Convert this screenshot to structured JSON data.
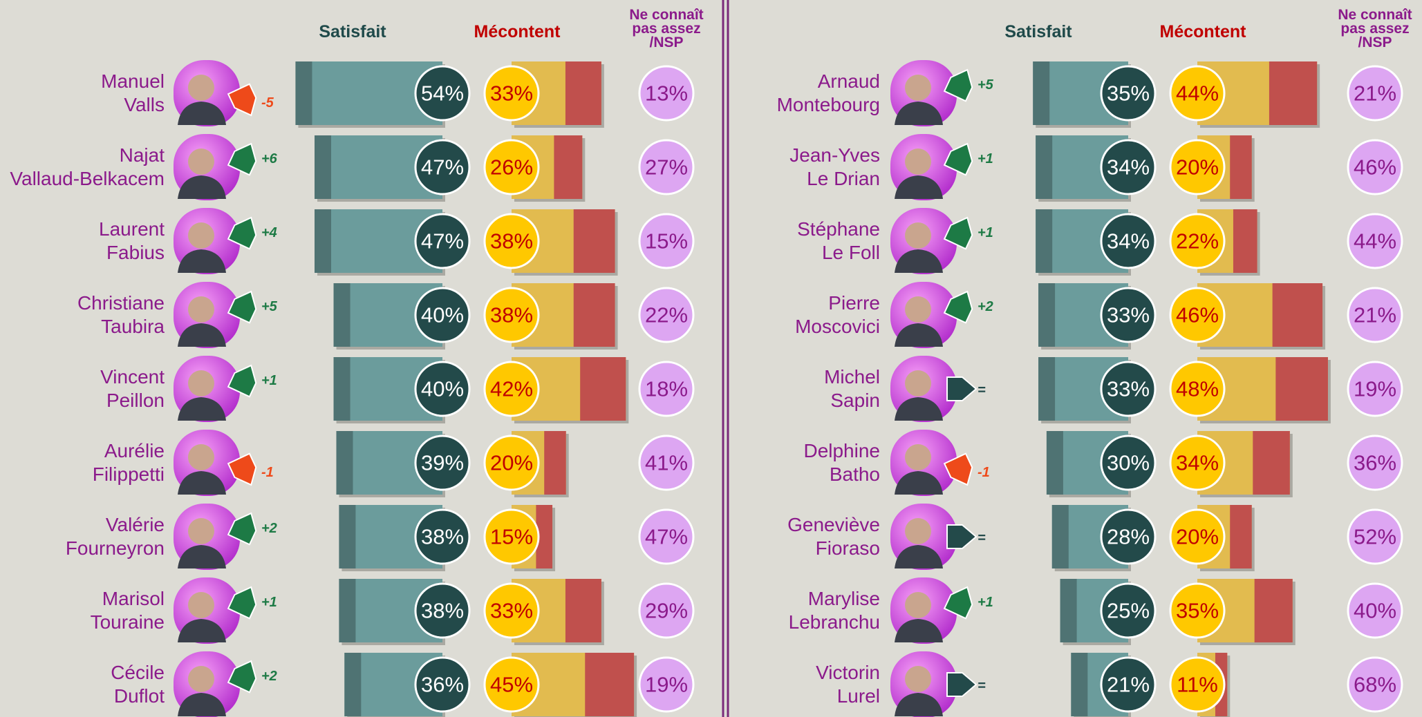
{
  "chart_data": [
    {
      "type": "bar",
      "categories": [
        "Manuel\nValls",
        "Najat\nVallaud-Belkacem",
        "Laurent\nFabius",
        "Christiane\nTaubira",
        "Vincent\nPeillon",
        "Aurélie\nFilippetti",
        "Valérie\nFourneyron",
        "Marisol\nTouraine",
        "Cécile\nDuflot"
      ],
      "changes": [
        -5,
        6,
        4,
        5,
        1,
        -1,
        2,
        1,
        2
      ],
      "change_labels": [
        "-5",
        "+6",
        "+4",
        "+5",
        "+1",
        "-1",
        "+2",
        "+1",
        "+2"
      ],
      "series": [
        {
          "name": "Satisfait",
          "color": "#6b9c9c",
          "values": [
            54,
            47,
            47,
            40,
            40,
            39,
            38,
            38,
            36
          ],
          "value_labels": [
            "54%",
            "47%",
            "47%",
            "40%",
            "40%",
            "39%",
            "38%",
            "38%",
            "36%"
          ]
        },
        {
          "name": "Mécontent",
          "color": "#e2bb4f",
          "values": [
            33,
            26,
            38,
            38,
            42,
            20,
            15,
            33,
            45
          ],
          "value_labels": [
            "33%",
            "26%",
            "38%",
            "38%",
            "42%",
            "20%",
            "15%",
            "33%",
            "45%"
          ]
        },
        {
          "name": "Ne connaît pas assez /NSP",
          "color": "#dda6f2",
          "values": [
            13,
            27,
            15,
            22,
            18,
            41,
            47,
            29,
            19
          ],
          "value_labels": [
            "13%",
            "27%",
            "15%",
            "22%",
            "18%",
            "41%",
            "47%",
            "29%",
            "19%"
          ]
        }
      ]
    },
    {
      "type": "bar",
      "categories": [
        "Arnaud\nMontebourg",
        "Jean-Yves\nLe Drian",
        "Stéphane\nLe Foll",
        "Pierre\nMoscovici",
        "Michel\nSapin",
        "Delphine\nBatho",
        "Geneviève\nFioraso",
        "Marylise\nLebranchu",
        "Victorin\nLurel"
      ],
      "changes": [
        5,
        1,
        1,
        2,
        0,
        -1,
        0,
        1,
        0
      ],
      "change_labels": [
        "+5",
        "+1",
        "+1",
        "+2",
        "=",
        "-1",
        "=",
        "+1",
        "="
      ],
      "series": [
        {
          "name": "Satisfait",
          "color": "#6b9c9c",
          "values": [
            35,
            34,
            34,
            33,
            33,
            30,
            28,
            25,
            21
          ],
          "value_labels": [
            "35%",
            "34%",
            "34%",
            "33%",
            "33%",
            "30%",
            "28%",
            "25%",
            "21%"
          ]
        },
        {
          "name": "Mécontent",
          "color": "#e2bb4f",
          "values": [
            44,
            20,
            22,
            46,
            48,
            34,
            20,
            35,
            11
          ],
          "value_labels": [
            "44%",
            "20%",
            "22%",
            "46%",
            "48%",
            "34%",
            "20%",
            "35%",
            "11%"
          ]
        },
        {
          "name": "Ne connaît pas assez /NSP",
          "color": "#dda6f2",
          "values": [
            21,
            46,
            44,
            21,
            19,
            36,
            52,
            40,
            68
          ],
          "value_labels": [
            "21%",
            "46%",
            "44%",
            "21%",
            "19%",
            "36%",
            "52%",
            "40%",
            "68%"
          ]
        }
      ]
    }
  ]
}
